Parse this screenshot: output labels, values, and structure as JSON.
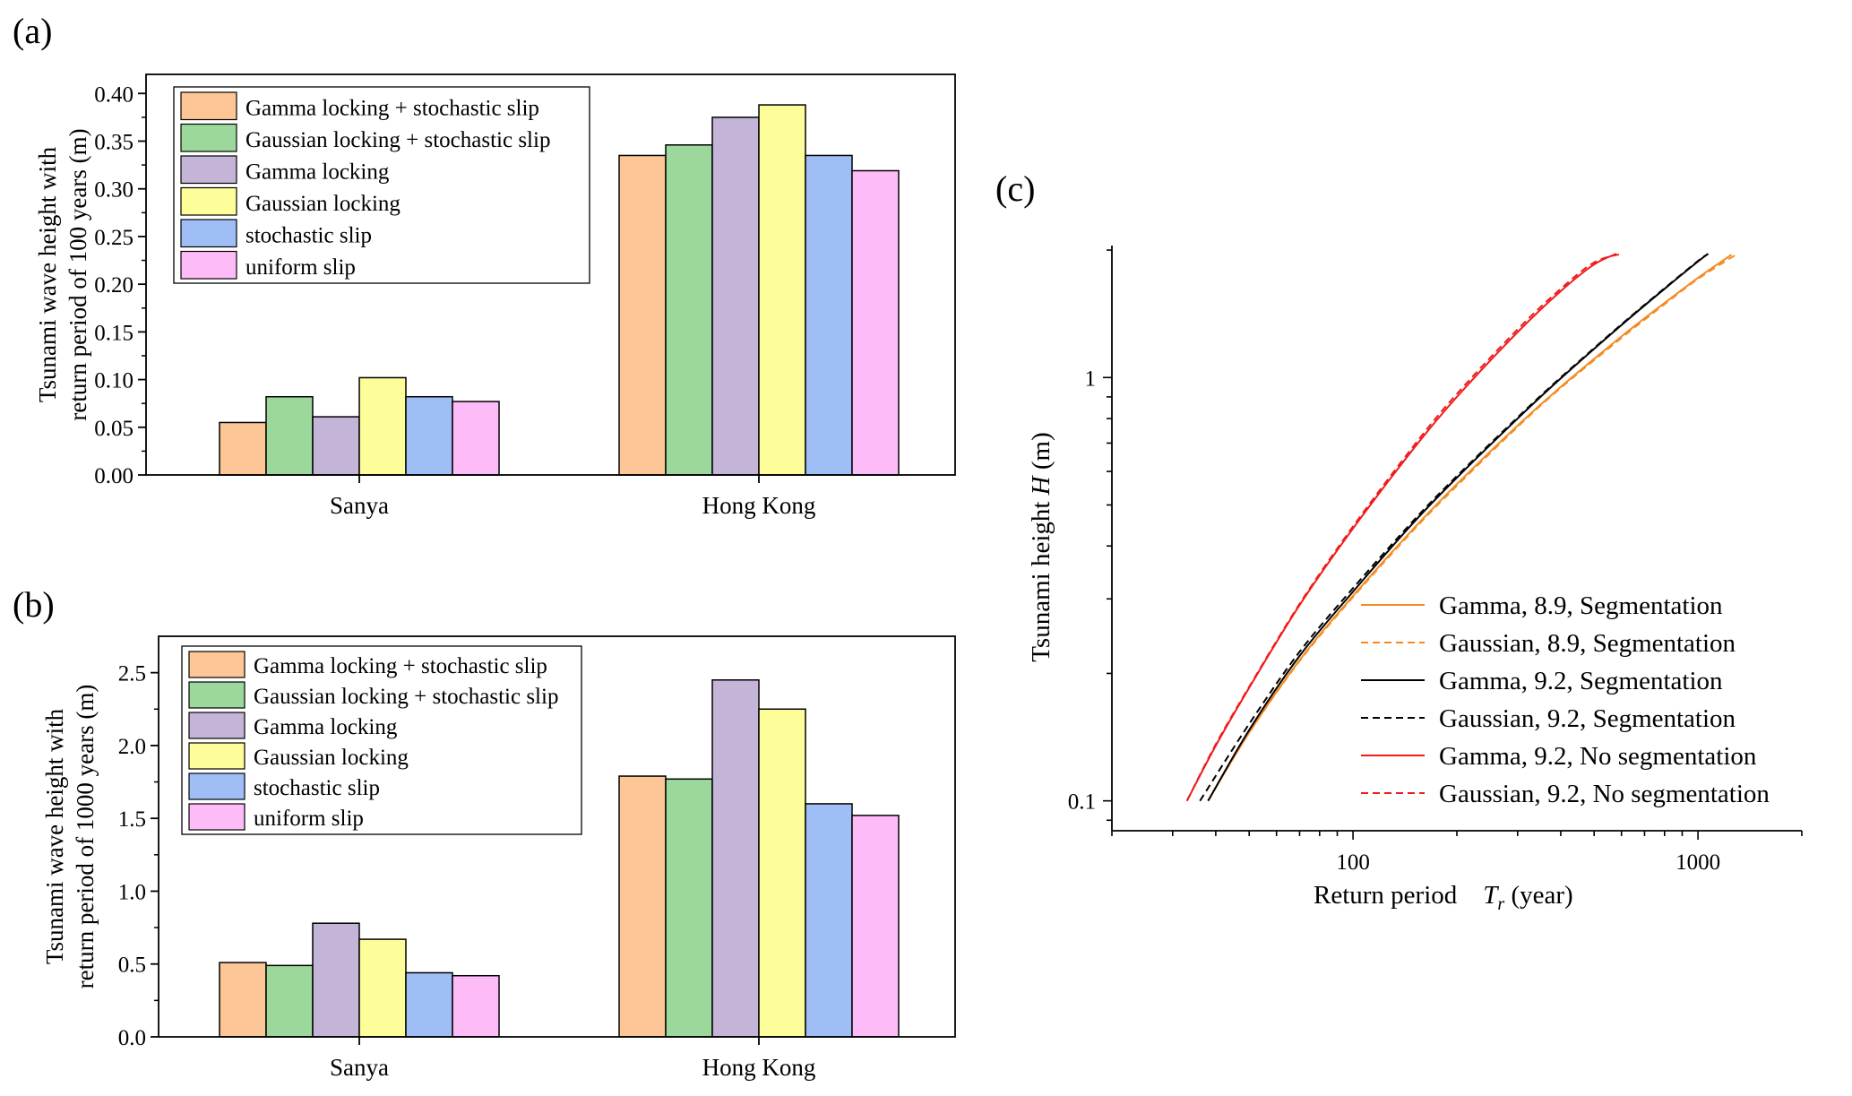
{
  "figure_labels": {
    "a": "(a)",
    "b": "(b)",
    "c": "(c)"
  },
  "colors": {
    "gamma_stoch": "#FDC696",
    "gauss_stoch": "#9CD89B",
    "gamma_lock": "#C3B4D8",
    "gauss_lock": "#FDFD99",
    "stoch": "#A0BEF6",
    "uniform": "#FDBBF7",
    "orange": "#F58A1E",
    "black": "#000000",
    "red": "#F11B1B"
  },
  "chart_data": [
    {
      "id": "a",
      "type": "bar",
      "categories": [
        "Sanya",
        "Hong Kong"
      ],
      "ylabel": [
        "Tsunami wave height with",
        "return period of 100 years (m)"
      ],
      "ylim": [
        0,
        0.42
      ],
      "yticks": [
        "0.00",
        "0.05",
        "0.10",
        "0.15",
        "0.20",
        "0.25",
        "0.30",
        "0.35",
        "0.40"
      ],
      "legend_position": "top-left",
      "series": [
        {
          "name": "Gamma locking + stochastic slip",
          "color": "#FDC696",
          "values": [
            0.055,
            0.335
          ]
        },
        {
          "name": "Gaussian locking + stochastic slip",
          "color": "#9CD89B",
          "values": [
            0.082,
            0.346
          ]
        },
        {
          "name": "Gamma locking",
          "color": "#C3B4D8",
          "values": [
            0.061,
            0.375
          ]
        },
        {
          "name": "Gaussian locking",
          "color": "#FDFD99",
          "values": [
            0.102,
            0.388
          ]
        },
        {
          "name": "stochastic slip",
          "color": "#A0BEF6",
          "values": [
            0.082,
            0.335
          ]
        },
        {
          "name": "uniform slip",
          "color": "#FDBBF7",
          "values": [
            0.077,
            0.319
          ]
        }
      ]
    },
    {
      "id": "b",
      "type": "bar",
      "categories": [
        "Sanya",
        "Hong Kong"
      ],
      "ylabel": [
        "Tsunami wave height with",
        "return period of 1000 years (m)"
      ],
      "ylim": [
        0,
        2.75
      ],
      "yticks": [
        "0.0",
        "0.5",
        "1.0",
        "1.5",
        "2.0",
        "2.5"
      ],
      "legend_position": "top-left",
      "series": [
        {
          "name": "Gamma locking + stochastic slip",
          "color": "#FDC696",
          "values": [
            0.51,
            1.79
          ]
        },
        {
          "name": "Gaussian locking + stochastic slip",
          "color": "#9CD89B",
          "values": [
            0.49,
            1.77
          ]
        },
        {
          "name": "Gamma locking",
          "color": "#C3B4D8",
          "values": [
            0.78,
            2.45
          ]
        },
        {
          "name": "Gaussian locking",
          "color": "#FDFD99",
          "values": [
            0.67,
            2.25
          ]
        },
        {
          "name": "stochastic slip",
          "color": "#A0BEF6",
          "values": [
            0.44,
            1.6
          ]
        },
        {
          "name": "uniform slip",
          "color": "#FDBBF7",
          "values": [
            0.42,
            1.52
          ]
        }
      ]
    },
    {
      "id": "c",
      "type": "line",
      "xscale": "log",
      "yscale": "log",
      "xlabel": "Return period",
      "xlabel_symbol": "T",
      "xlabel_sub": "r",
      "xlabel_unit": "(year)",
      "ylabel": "Tsunami height",
      "ylabel_symbol": "H",
      "ylabel_unit": "(m)",
      "xlim": [
        20,
        2000
      ],
      "ylim": [
        0.085,
        2.05
      ],
      "xticks": [
        "100",
        "1000"
      ],
      "yticks": [
        "0.1",
        "1"
      ],
      "legend_position": "bottom-right",
      "series": [
        {
          "name": "Gamma, 8.9, Segmentation",
          "color": "#F58A1E",
          "dash": false,
          "x": [
            38,
            50,
            70,
            100,
            150,
            200,
            300,
            400,
            600,
            800,
            1000,
            1250
          ],
          "y": [
            0.1,
            0.145,
            0.215,
            0.305,
            0.44,
            0.56,
            0.77,
            0.95,
            1.25,
            1.5,
            1.72,
            1.95
          ]
        },
        {
          "name": "Gaussian, 8.9, Segmentation",
          "color": "#F58A1E",
          "dash": true,
          "x": [
            38,
            50,
            70,
            100,
            150,
            200,
            300,
            400,
            600,
            800,
            1000,
            1300
          ],
          "y": [
            0.1,
            0.145,
            0.214,
            0.303,
            0.437,
            0.555,
            0.765,
            0.945,
            1.24,
            1.49,
            1.71,
            1.96
          ]
        },
        {
          "name": "Gamma, 9.2, Segmentation",
          "color": "#000000",
          "dash": false,
          "x": [
            38,
            50,
            70,
            100,
            150,
            200,
            300,
            400,
            600,
            800,
            1000,
            1070
          ],
          "y": [
            0.1,
            0.147,
            0.22,
            0.312,
            0.455,
            0.58,
            0.8,
            0.995,
            1.33,
            1.62,
            1.88,
            1.96
          ]
        },
        {
          "name": "Gaussian, 9.2, Segmentation",
          "color": "#000000",
          "dash": true,
          "x": [
            36,
            50,
            70,
            100,
            150,
            200,
            300,
            400,
            600,
            800,
            1000,
            1070
          ],
          "y": [
            0.1,
            0.152,
            0.225,
            0.318,
            0.46,
            0.585,
            0.805,
            1.0,
            1.335,
            1.625,
            1.885,
            1.96
          ]
        },
        {
          "name": "Gamma, 9.2, No segmentation",
          "color": "#F11B1B",
          "dash": false,
          "x": [
            33,
            40,
            50,
            70,
            100,
            150,
            200,
            300,
            400,
            500,
            580
          ],
          "y": [
            0.1,
            0.135,
            0.185,
            0.29,
            0.44,
            0.68,
            0.9,
            1.28,
            1.6,
            1.85,
            1.96
          ]
        },
        {
          "name": "Gaussian, 9.2, No segmentation",
          "color": "#F11B1B",
          "dash": true,
          "x": [
            33,
            40,
            50,
            70,
            100,
            150,
            200,
            300,
            400,
            500,
            600
          ],
          "y": [
            0.1,
            0.136,
            0.186,
            0.292,
            0.445,
            0.69,
            0.915,
            1.3,
            1.62,
            1.87,
            1.96
          ]
        }
      ]
    }
  ]
}
